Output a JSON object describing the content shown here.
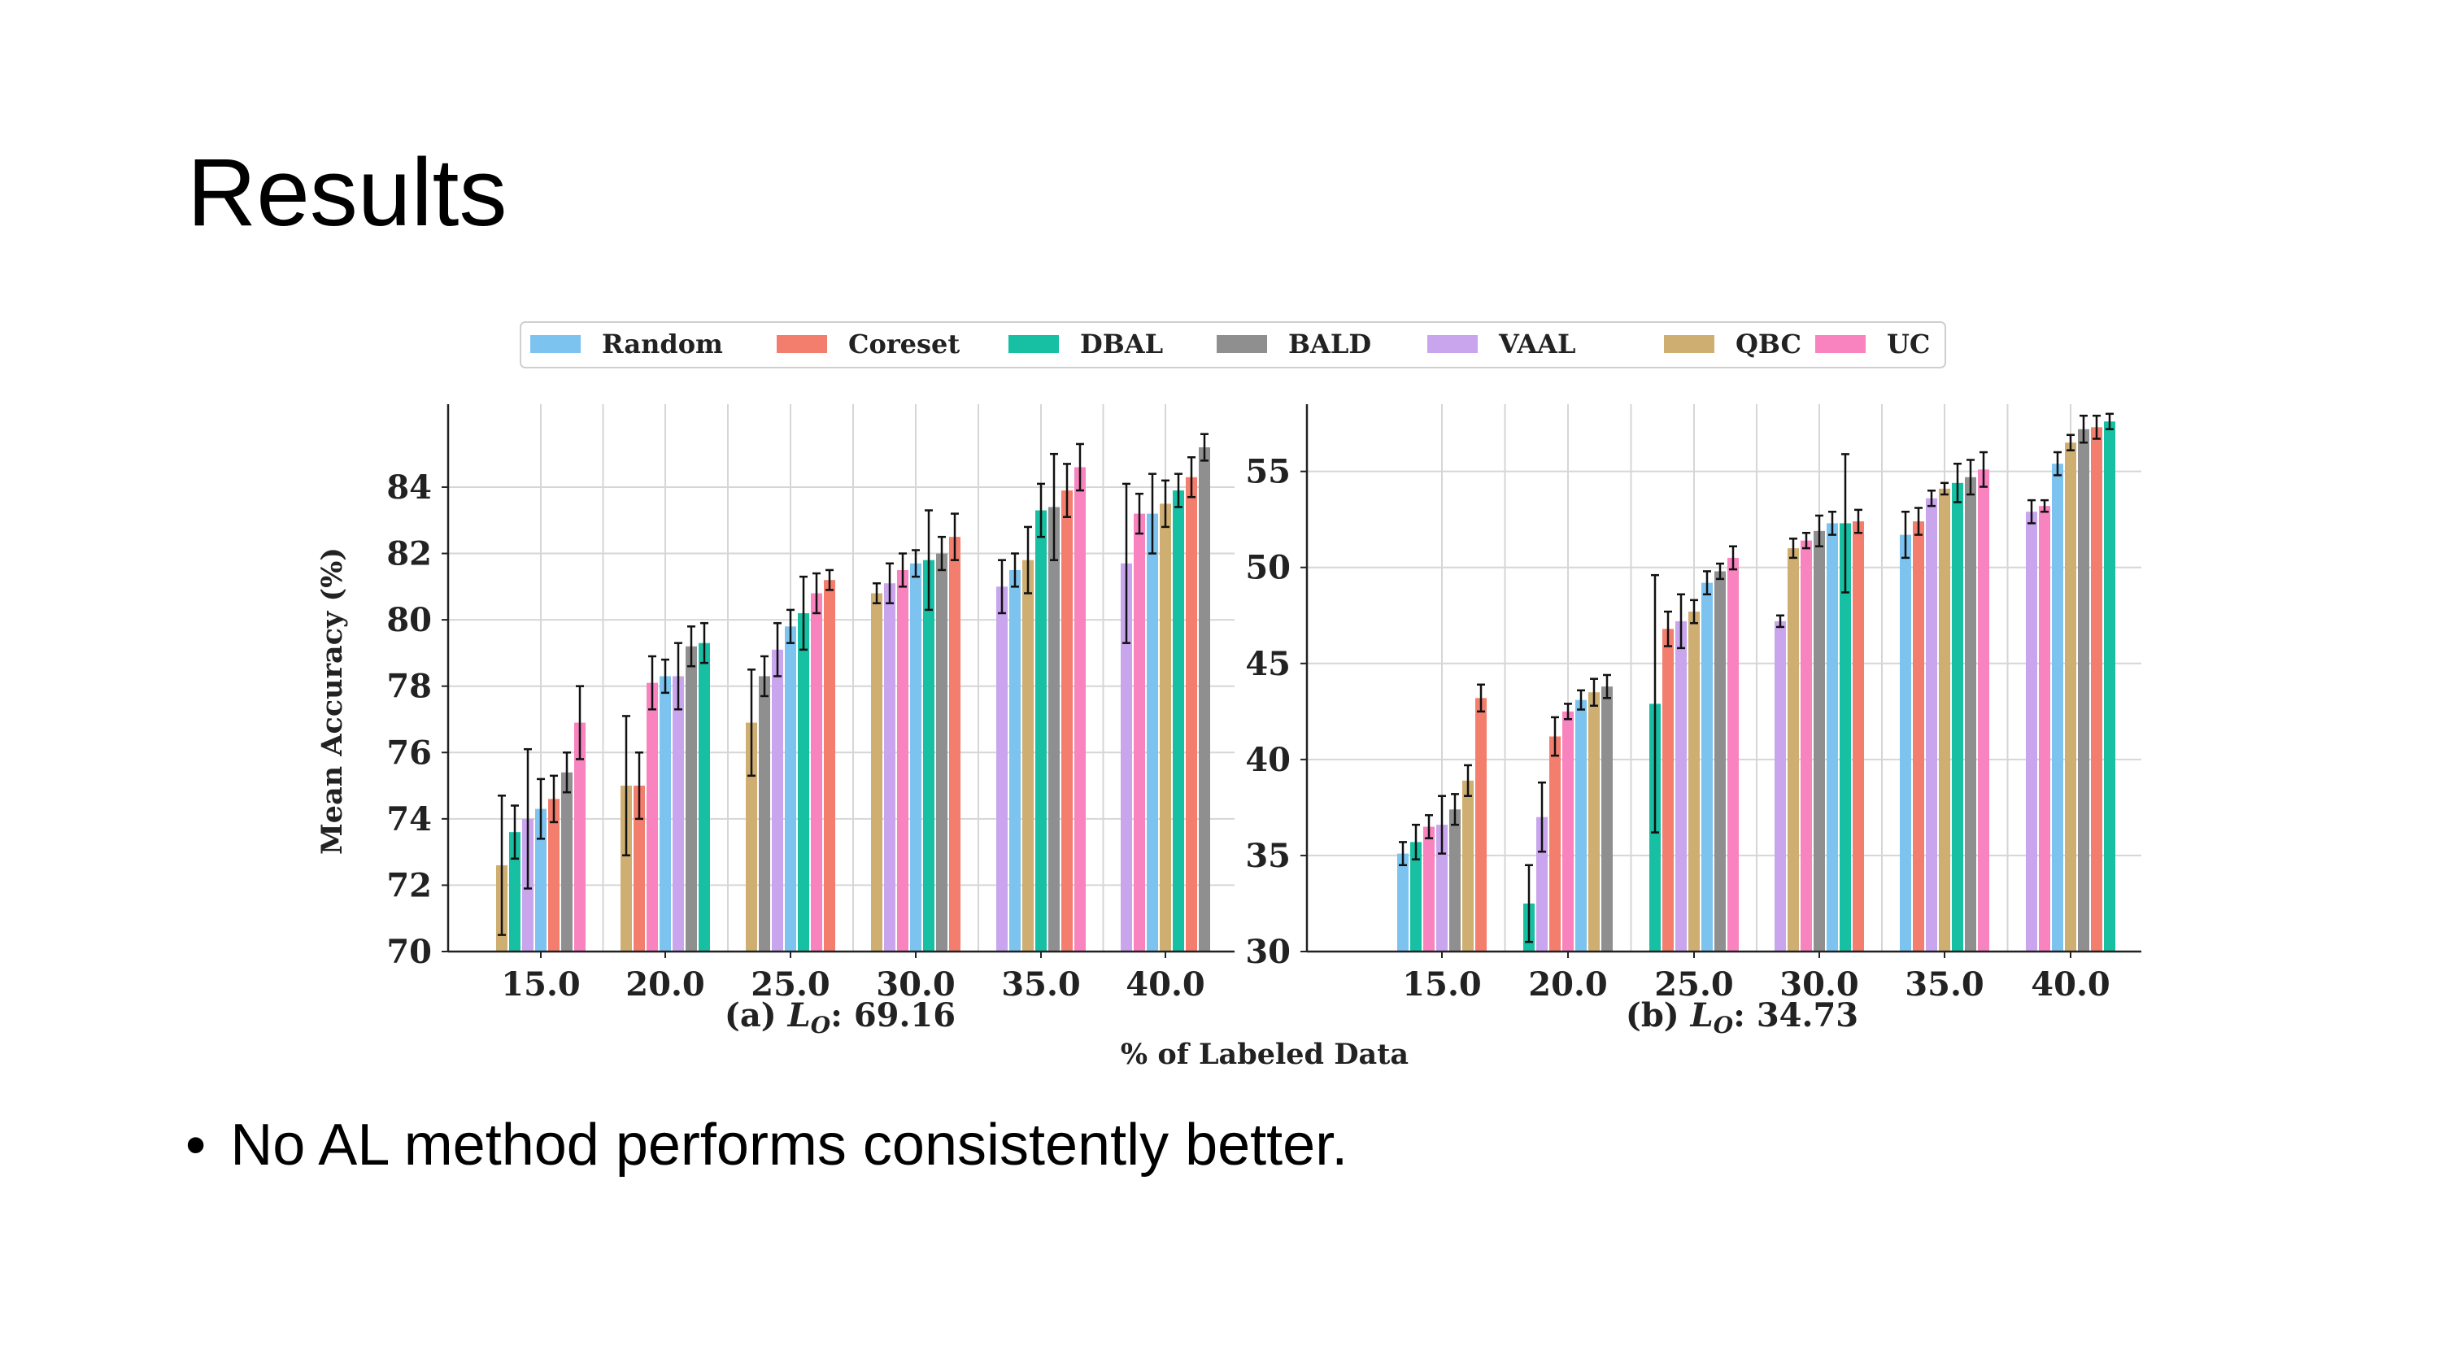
{
  "slide": {
    "title": "Results",
    "bullet_marker": "•",
    "bullet": "No AL method performs consistently better."
  },
  "figure": {
    "shared_xlabel": "% of Labeled Data",
    "legend": [
      {
        "name": "Random",
        "color": "#7cc3f0"
      },
      {
        "name": "Coreset",
        "color": "#f37e6e"
      },
      {
        "name": "DBAL",
        "color": "#17bfa3"
      },
      {
        "name": "BALD",
        "color": "#8f8f8f"
      },
      {
        "name": "VAAL",
        "color": "#c8a5ec"
      },
      {
        "name": "QBC",
        "color": "#cfae72"
      },
      {
        "name": "UC",
        "color": "#f883be"
      }
    ],
    "legend_placement": "top-center"
  },
  "chart_data": [
    {
      "type": "bar",
      "panel_label_prefix": "(a) ",
      "panel_label_math": "L",
      "panel_label_sub": "O",
      "panel_label_value": ": 69.16",
      "ylabel": "Mean Accuracy (%)",
      "xlabel": "% of Labeled Data",
      "categories": [
        "15.0",
        "20.0",
        "25.0",
        "30.0",
        "35.0",
        "40.0"
      ],
      "ylim": [
        70,
        86.5
      ],
      "yticks": [
        "70",
        "72",
        "74",
        "76",
        "78",
        "80",
        "82",
        "84"
      ],
      "grid": true,
      "groups": [
        {
          "category": "15.0",
          "bars": [
            {
              "series": "QBC",
              "value": 72.6,
              "err": 2.1
            },
            {
              "series": "DBAL",
              "value": 73.6,
              "err": 0.8
            },
            {
              "series": "VAAL",
              "value": 74.0,
              "err": 2.1
            },
            {
              "series": "Random",
              "value": 74.3,
              "err": 0.9
            },
            {
              "series": "Coreset",
              "value": 74.6,
              "err": 0.7
            },
            {
              "series": "BALD",
              "value": 75.4,
              "err": 0.6
            },
            {
              "series": "UC",
              "value": 76.9,
              "err": 1.1
            }
          ]
        },
        {
          "category": "20.0",
          "bars": [
            {
              "series": "QBC",
              "value": 75.0,
              "err": 2.1
            },
            {
              "series": "Coreset",
              "value": 75.0,
              "err": 1.0
            },
            {
              "series": "UC",
              "value": 78.1,
              "err": 0.8
            },
            {
              "series": "Random",
              "value": 78.3,
              "err": 0.5
            },
            {
              "series": "VAAL",
              "value": 78.3,
              "err": 1.0
            },
            {
              "series": "BALD",
              "value": 79.2,
              "err": 0.6
            },
            {
              "series": "DBAL",
              "value": 79.3,
              "err": 0.6
            }
          ]
        },
        {
          "category": "25.0",
          "bars": [
            {
              "series": "QBC",
              "value": 76.9,
              "err": 1.6
            },
            {
              "series": "BALD",
              "value": 78.3,
              "err": 0.6
            },
            {
              "series": "VAAL",
              "value": 79.1,
              "err": 0.8
            },
            {
              "series": "Random",
              "value": 79.8,
              "err": 0.5
            },
            {
              "series": "DBAL",
              "value": 80.2,
              "err": 1.1
            },
            {
              "series": "UC",
              "value": 80.8,
              "err": 0.6
            },
            {
              "series": "Coreset",
              "value": 81.2,
              "err": 0.3
            }
          ]
        },
        {
          "category": "30.0",
          "bars": [
            {
              "series": "QBC",
              "value": 80.8,
              "err": 0.3
            },
            {
              "series": "VAAL",
              "value": 81.1,
              "err": 0.6
            },
            {
              "series": "UC",
              "value": 81.5,
              "err": 0.5
            },
            {
              "series": "Random",
              "value": 81.7,
              "err": 0.4
            },
            {
              "series": "DBAL",
              "value": 81.8,
              "err": 1.5
            },
            {
              "series": "BALD",
              "value": 82.0,
              "err": 0.5
            },
            {
              "series": "Coreset",
              "value": 82.5,
              "err": 0.7
            }
          ]
        },
        {
          "category": "35.0",
          "bars": [
            {
              "series": "VAAL",
              "value": 81.0,
              "err": 0.8
            },
            {
              "series": "Random",
              "value": 81.5,
              "err": 0.5
            },
            {
              "series": "QBC",
              "value": 81.8,
              "err": 1.0
            },
            {
              "series": "DBAL",
              "value": 83.3,
              "err": 0.8
            },
            {
              "series": "BALD",
              "value": 83.4,
              "err": 1.6
            },
            {
              "series": "Coreset",
              "value": 83.9,
              "err": 0.8
            },
            {
              "series": "UC",
              "value": 84.6,
              "err": 0.7
            }
          ]
        },
        {
          "category": "40.0",
          "bars": [
            {
              "series": "VAAL",
              "value": 81.7,
              "err": 2.4
            },
            {
              "series": "UC",
              "value": 83.2,
              "err": 0.6
            },
            {
              "series": "Random",
              "value": 83.2,
              "err": 1.2
            },
            {
              "series": "QBC",
              "value": 83.5,
              "err": 0.7
            },
            {
              "series": "DBAL",
              "value": 83.9,
              "err": 0.5
            },
            {
              "series": "Coreset",
              "value": 84.3,
              "err": 0.6
            },
            {
              "series": "BALD",
              "value": 85.2,
              "err": 0.4
            }
          ]
        }
      ]
    },
    {
      "type": "bar",
      "panel_label_prefix": "(b) ",
      "panel_label_math": "L",
      "panel_label_sub": "O",
      "panel_label_value": ": 34.73",
      "ylabel": "",
      "xlabel": "% of Labeled Data",
      "categories": [
        "15.0",
        "20.0",
        "25.0",
        "30.0",
        "35.0",
        "40.0"
      ],
      "ylim": [
        30,
        58.5
      ],
      "yticks": [
        "30",
        "35",
        "40",
        "45",
        "50",
        "55"
      ],
      "grid": true,
      "groups": [
        {
          "category": "15.0",
          "bars": [
            {
              "series": "Random",
              "value": 35.1,
              "err": 0.6
            },
            {
              "series": "DBAL",
              "value": 35.7,
              "err": 0.9
            },
            {
              "series": "UC",
              "value": 36.5,
              "err": 0.6
            },
            {
              "series": "VAAL",
              "value": 36.6,
              "err": 1.5
            },
            {
              "series": "BALD",
              "value": 37.4,
              "err": 0.8
            },
            {
              "series": "QBC",
              "value": 38.9,
              "err": 0.8
            },
            {
              "series": "Coreset",
              "value": 43.2,
              "err": 0.7
            }
          ]
        },
        {
          "category": "20.0",
          "bars": [
            {
              "series": "DBAL",
              "value": 32.5,
              "err": 2.0
            },
            {
              "series": "VAAL",
              "value": 37.0,
              "err": 1.8
            },
            {
              "series": "Coreset",
              "value": 41.2,
              "err": 1.0
            },
            {
              "series": "UC",
              "value": 42.5,
              "err": 0.4
            },
            {
              "series": "Random",
              "value": 43.1,
              "err": 0.5
            },
            {
              "series": "QBC",
              "value": 43.5,
              "err": 0.7
            },
            {
              "series": "BALD",
              "value": 43.8,
              "err": 0.6
            }
          ]
        },
        {
          "category": "25.0",
          "bars": [
            {
              "series": "DBAL",
              "value": 42.9,
              "err": 6.7
            },
            {
              "series": "Coreset",
              "value": 46.8,
              "err": 0.9
            },
            {
              "series": "VAAL",
              "value": 47.2,
              "err": 1.4
            },
            {
              "series": "QBC",
              "value": 47.7,
              "err": 0.6
            },
            {
              "series": "Random",
              "value": 49.2,
              "err": 0.6
            },
            {
              "series": "BALD",
              "value": 49.8,
              "err": 0.4
            },
            {
              "series": "UC",
              "value": 50.5,
              "err": 0.6
            }
          ]
        },
        {
          "category": "30.0",
          "bars": [
            {
              "series": "VAAL",
              "value": 47.2,
              "err": 0.3
            },
            {
              "series": "QBC",
              "value": 51.0,
              "err": 0.5
            },
            {
              "series": "UC",
              "value": 51.4,
              "err": 0.4
            },
            {
              "series": "BALD",
              "value": 51.9,
              "err": 0.8
            },
            {
              "series": "Random",
              "value": 52.3,
              "err": 0.6
            },
            {
              "series": "DBAL",
              "value": 52.3,
              "err": 3.6
            },
            {
              "series": "Coreset",
              "value": 52.4,
              "err": 0.6
            }
          ]
        },
        {
          "category": "35.0",
          "bars": [
            {
              "series": "Random",
              "value": 51.7,
              "err": 1.2
            },
            {
              "series": "Coreset",
              "value": 52.4,
              "err": 0.7
            },
            {
              "series": "VAAL",
              "value": 53.6,
              "err": 0.4
            },
            {
              "series": "QBC",
              "value": 54.1,
              "err": 0.3
            },
            {
              "series": "DBAL",
              "value": 54.4,
              "err": 1.0
            },
            {
              "series": "BALD",
              "value": 54.7,
              "err": 0.9
            },
            {
              "series": "UC",
              "value": 55.1,
              "err": 0.9
            }
          ]
        },
        {
          "category": "40.0",
          "bars": [
            {
              "series": "VAAL",
              "value": 52.9,
              "err": 0.6
            },
            {
              "series": "UC",
              "value": 53.2,
              "err": 0.3
            },
            {
              "series": "Random",
              "value": 55.4,
              "err": 0.6
            },
            {
              "series": "QBC",
              "value": 56.5,
              "err": 0.4
            },
            {
              "series": "BALD",
              "value": 57.2,
              "err": 0.7
            },
            {
              "series": "Coreset",
              "value": 57.3,
              "err": 0.6
            },
            {
              "series": "DBAL",
              "value": 57.6,
              "err": 0.4
            }
          ]
        }
      ]
    }
  ]
}
